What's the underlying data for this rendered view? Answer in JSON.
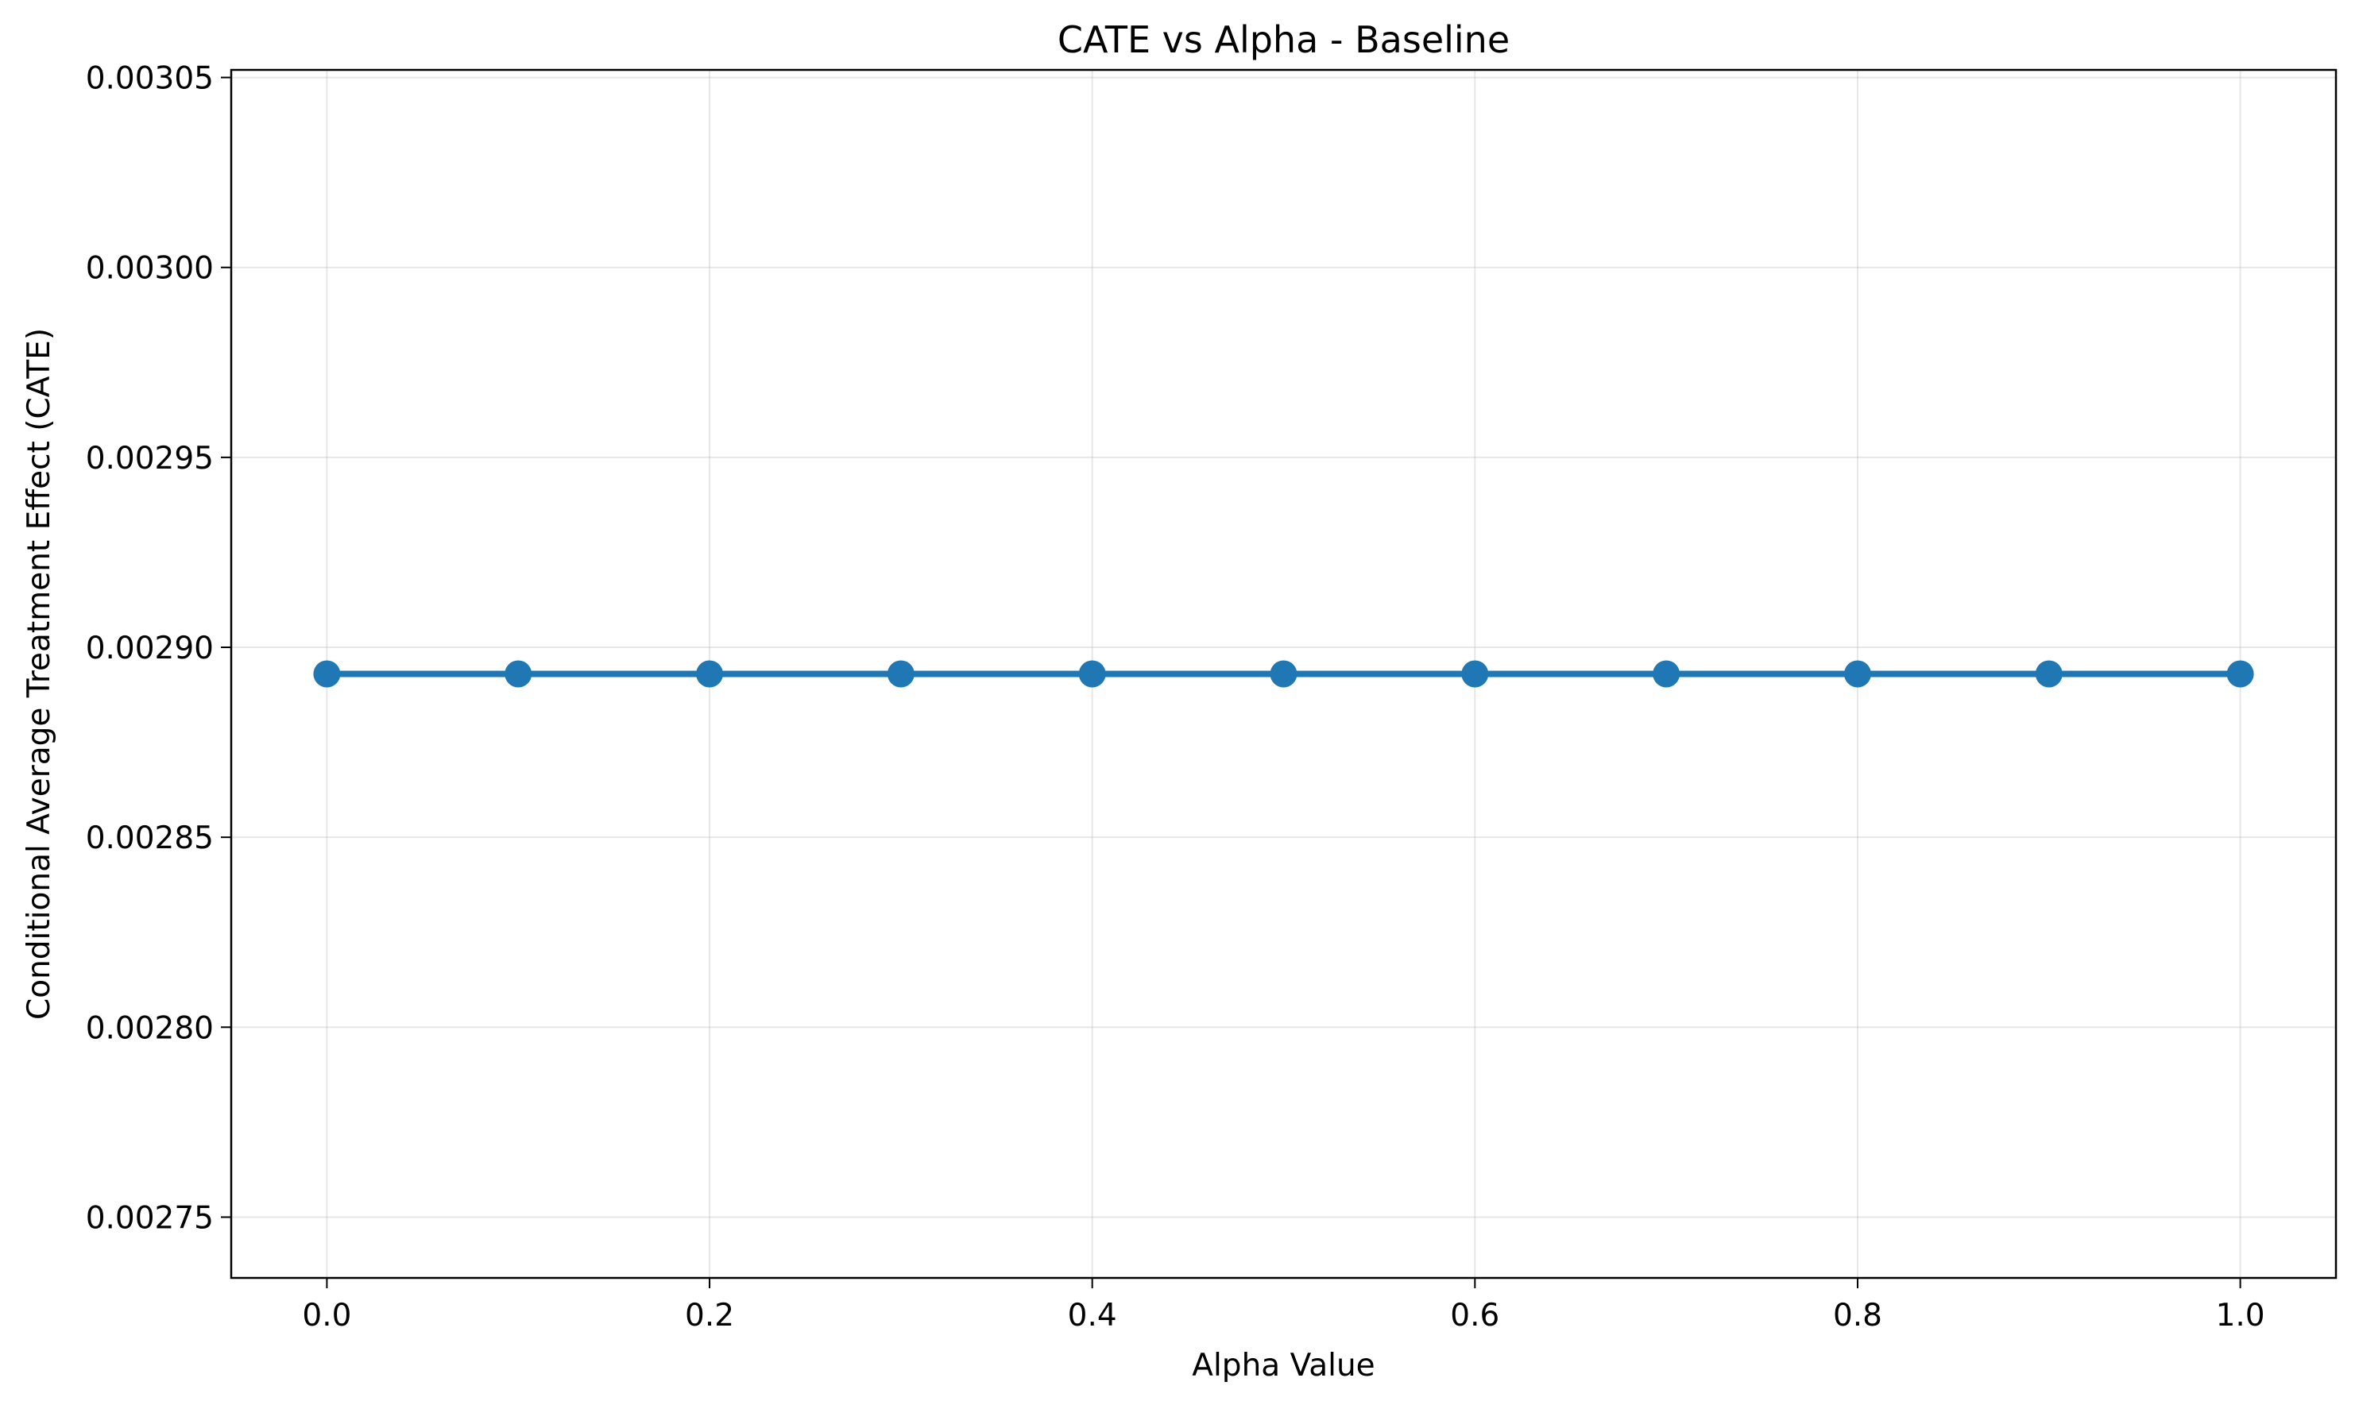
{
  "chart_data": {
    "type": "line",
    "title": "CATE vs Alpha - Baseline",
    "xlabel": "Alpha Value",
    "ylabel": "Conditional Average Treatment Effect (CATE)",
    "xlim": [
      -0.05,
      1.05
    ],
    "ylim": [
      0.002734,
      0.003052
    ],
    "xticks": [
      0.0,
      0.2,
      0.4,
      0.6,
      0.8,
      1.0
    ],
    "xtick_labels": [
      "0.0",
      "0.2",
      "0.4",
      "0.6",
      "0.8",
      "1.0"
    ],
    "yticks": [
      0.00275,
      0.0028,
      0.00285,
      0.0029,
      0.00295,
      0.003,
      0.00305
    ],
    "ytick_labels": [
      "0.00275",
      "0.00280",
      "0.00285",
      "0.00290",
      "0.00295",
      "0.00300",
      "0.00305"
    ],
    "grid": true,
    "series": [
      {
        "color": "#1f77b4",
        "marker": "circle",
        "x": [
          0.0,
          0.1,
          0.2,
          0.3,
          0.4,
          0.5,
          0.6,
          0.7,
          0.8,
          0.9,
          1.0
        ],
        "y": [
          0.002893,
          0.002893,
          0.002893,
          0.002893,
          0.002893,
          0.002893,
          0.002893,
          0.002893,
          0.002893,
          0.002893,
          0.002893
        ]
      }
    ]
  }
}
